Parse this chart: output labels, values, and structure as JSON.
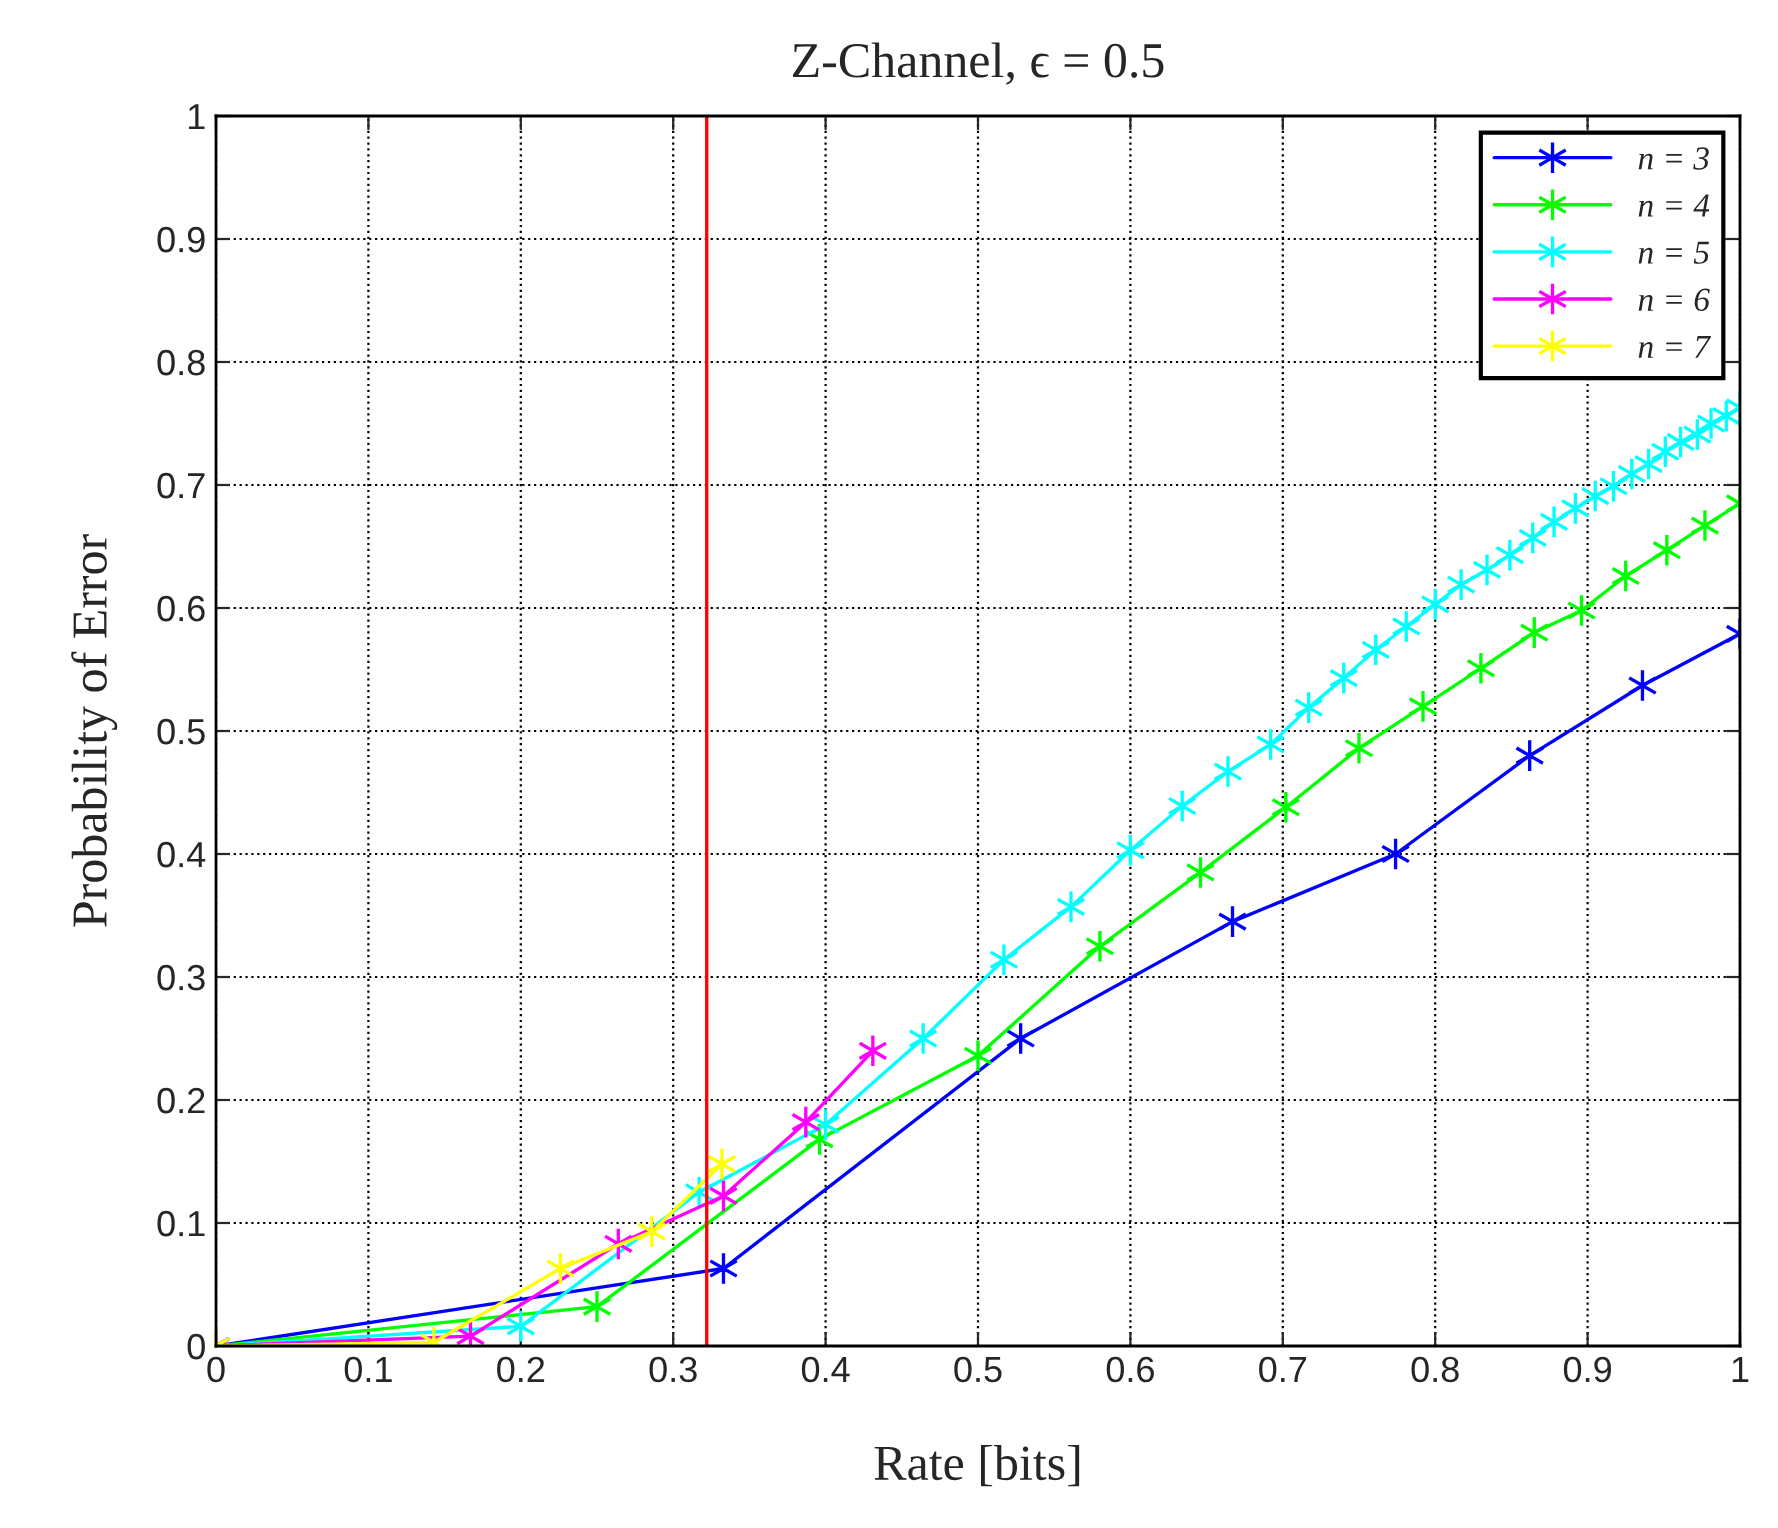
{
  "chart_data": {
    "type": "line",
    "title": "Z-Channel, ϵ = 0.5",
    "xlabel": "Rate [bits]",
    "ylabel": "Probability of Error",
    "xlim": [
      0,
      1
    ],
    "ylim": [
      0,
      1
    ],
    "xticks": [
      0,
      0.1,
      0.2,
      0.3,
      0.4,
      0.5,
      0.6,
      0.7,
      0.8,
      0.9,
      1
    ],
    "yticks": [
      0,
      0.1,
      0.2,
      0.3,
      0.4,
      0.5,
      0.6,
      0.7,
      0.8,
      0.9,
      1
    ],
    "grid": true,
    "legend": "top right",
    "marker": "cross",
    "line_style": "solid",
    "series": [
      {
        "name": "n = 3",
        "color": "#0000ff",
        "x": [
          0,
          0.333,
          0.528,
          0.667,
          0.774,
          0.862,
          0.936,
          1
        ],
        "values": [
          0,
          0.063,
          0.25,
          0.345,
          0.4,
          0.48,
          0.537,
          0.579
        ]
      },
      {
        "name": "n = 4",
        "color": "#00ff00",
        "x": [
          0,
          0.25,
          0.396,
          0.5,
          0.58,
          0.646,
          0.702,
          0.75,
          0.792,
          0.83,
          0.865,
          0.896,
          0.925,
          0.952,
          0.977,
          1
        ],
        "values": [
          0,
          0.032,
          0.168,
          0.236,
          0.325,
          0.385,
          0.438,
          0.486,
          0.52,
          0.551,
          0.58,
          0.598,
          0.626,
          0.647,
          0.667,
          0.685
        ]
      },
      {
        "name": "n = 5",
        "color": "#00ffff",
        "x": [
          0,
          0.2,
          0.317,
          0.4,
          0.464,
          0.517,
          0.561,
          0.6,
          0.634,
          0.664,
          0.692,
          0.717,
          0.74,
          0.761,
          0.781,
          0.8,
          0.817,
          0.834,
          0.849,
          0.864,
          0.878,
          0.892,
          0.905,
          0.917,
          0.929,
          0.94,
          0.951,
          0.961,
          0.972,
          0.981,
          0.991,
          1
        ],
        "values": [
          0,
          0.016,
          0.125,
          0.18,
          0.25,
          0.314,
          0.357,
          0.403,
          0.439,
          0.467,
          0.489,
          0.519,
          0.543,
          0.566,
          0.585,
          0.603,
          0.619,
          0.631,
          0.643,
          0.657,
          0.67,
          0.681,
          0.691,
          0.699,
          0.709,
          0.717,
          0.727,
          0.735,
          0.741,
          0.75,
          0.756,
          0.763
        ]
      },
      {
        "name": "n = 6",
        "color": "#ff00ff",
        "x": [
          0,
          0.167,
          0.264,
          0.333,
          0.387,
          0.431
        ],
        "values": [
          0,
          0.008,
          0.083,
          0.122,
          0.182,
          0.24
        ]
      },
      {
        "name": "n = 7",
        "color": "#ffff00",
        "x": [
          0,
          0.143,
          0.226,
          0.286,
          0.332
        ],
        "values": [
          0,
          0.003,
          0.063,
          0.093,
          0.148
        ]
      }
    ],
    "ref_lines": [
      {
        "axis": "x",
        "value": 0.322,
        "color": "#ff0000"
      }
    ]
  }
}
